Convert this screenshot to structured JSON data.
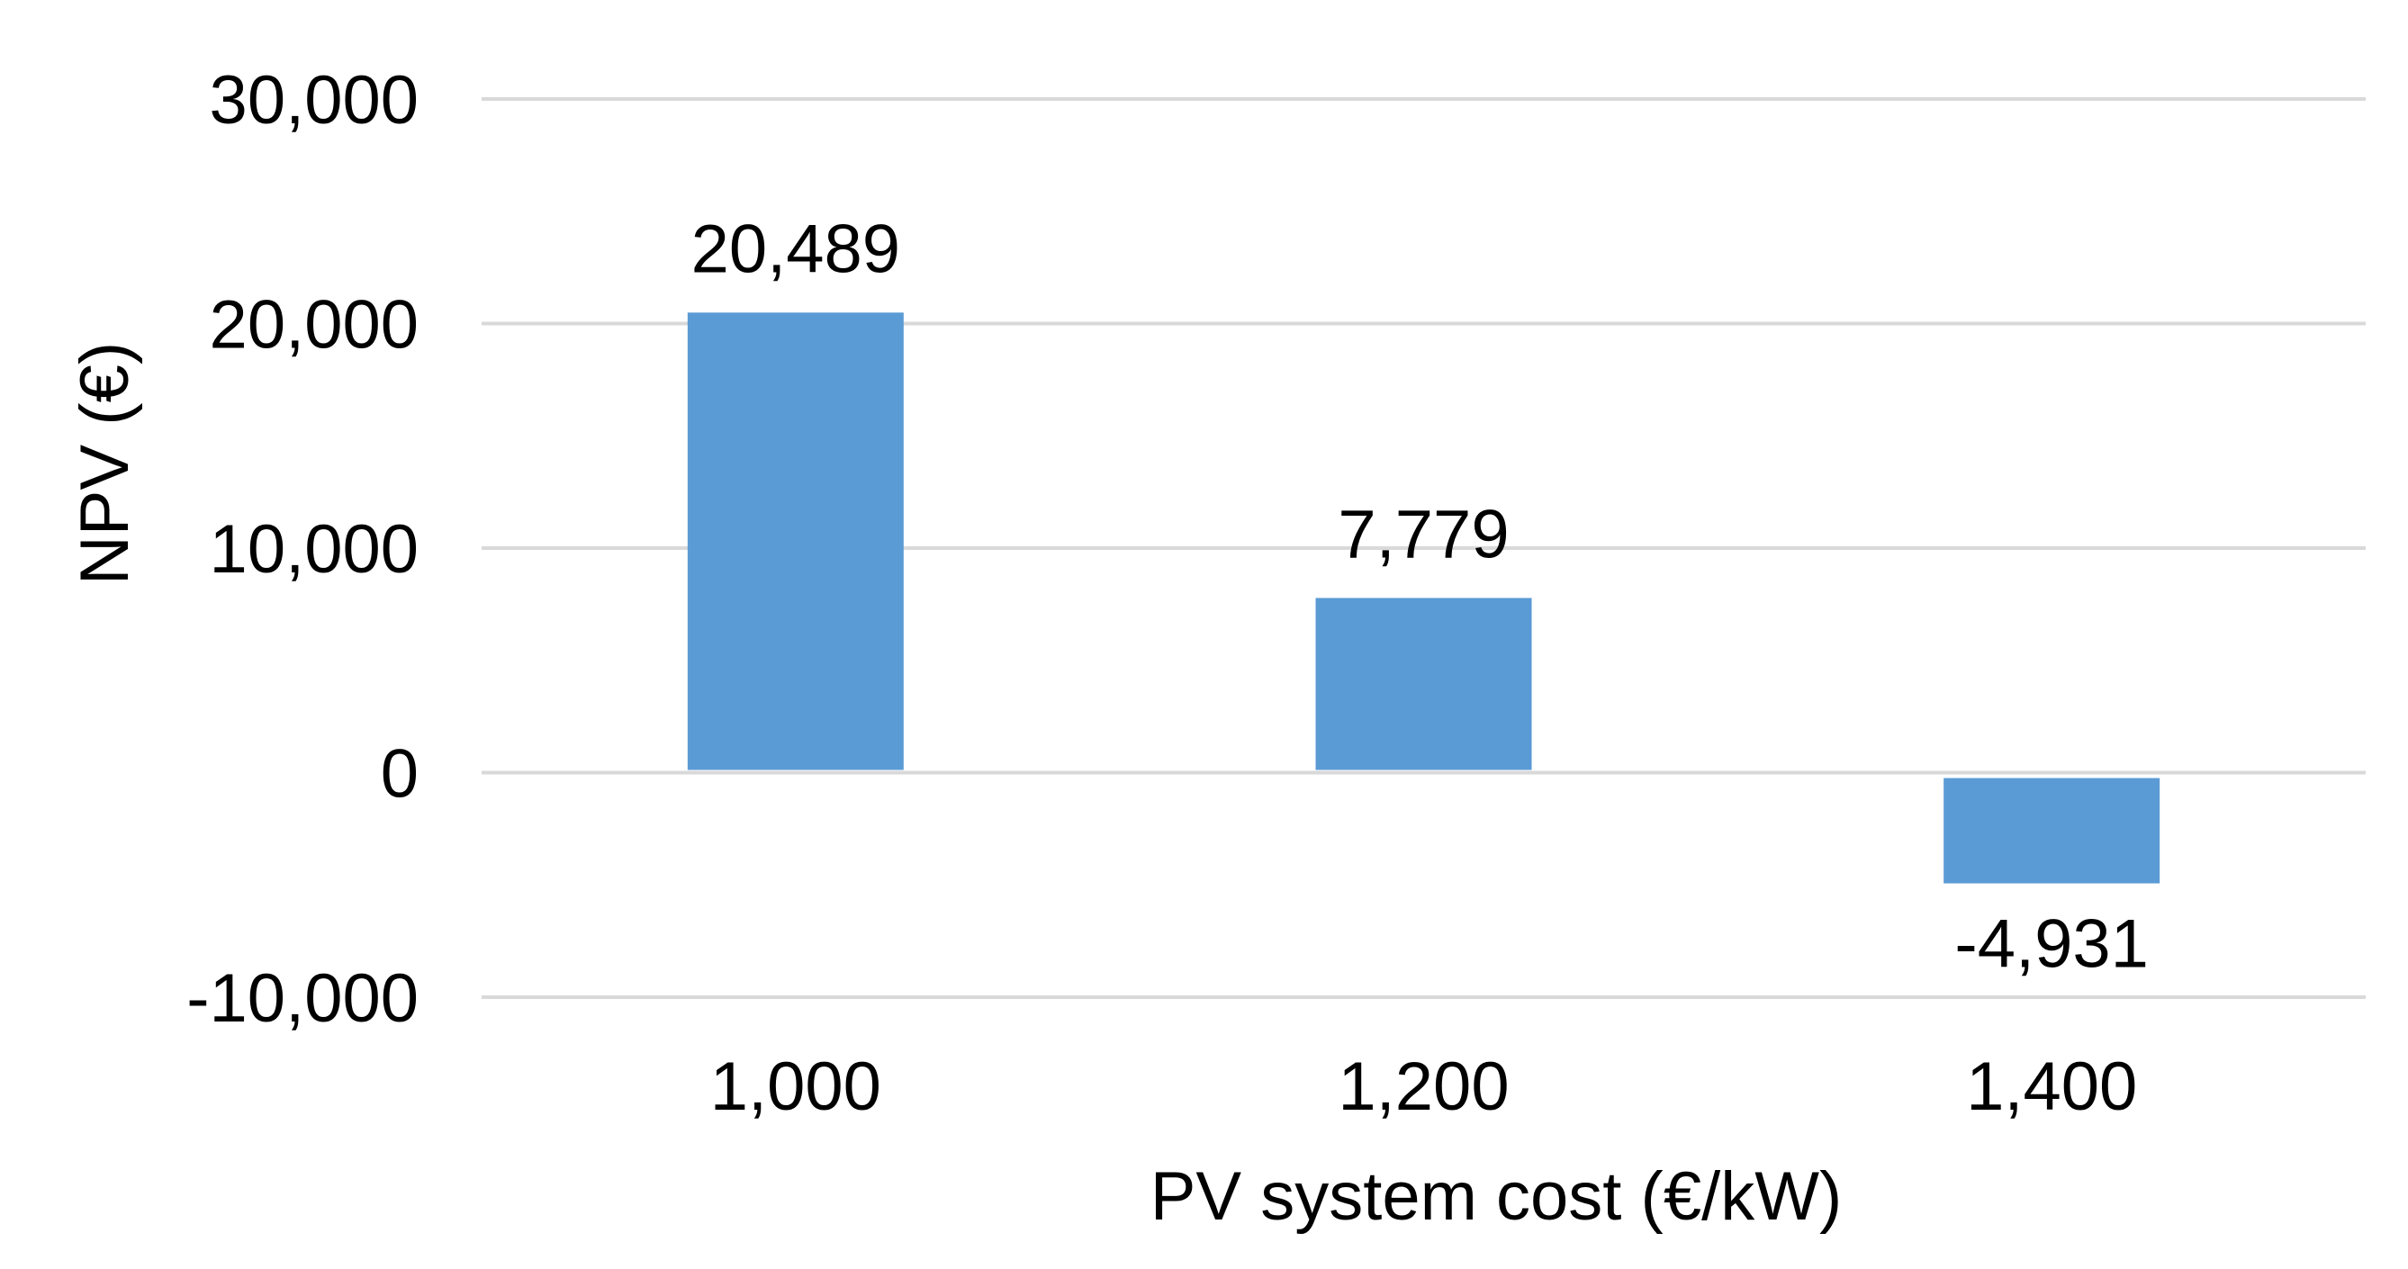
{
  "chart_data": {
    "type": "bar",
    "xlabel": "PV system cost (€/kW)",
    "ylabel": "NPV (€)",
    "categories": [
      "1,000",
      "1,200",
      "1,400"
    ],
    "values": [
      20489,
      7779,
      -4931
    ],
    "data_labels": [
      "20,489",
      "7,779",
      "-4,931"
    ],
    "ylim": [
      -10000,
      30000
    ],
    "yticks": [
      -10000,
      0,
      10000,
      20000,
      30000
    ],
    "ytick_labels": [
      "-10,000",
      "0",
      "10,000",
      "20,000",
      "30,000"
    ],
    "grid": true,
    "legend": "none",
    "colors": {
      "bar": "#5b9bd5",
      "grid": "#d9d9d9"
    }
  }
}
